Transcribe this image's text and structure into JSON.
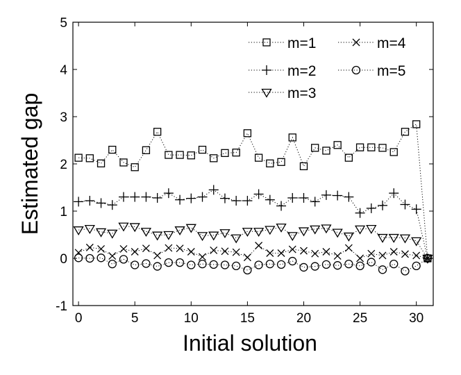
{
  "chart_data": {
    "type": "line",
    "xlabel": "Initial solution",
    "ylabel": "Estimated gap",
    "xlim": [
      -0.5,
      31.5
    ],
    "ylim": [
      -1,
      5
    ],
    "xticks": [
      0,
      5,
      10,
      15,
      20,
      25,
      30
    ],
    "yticks": [
      -1,
      0,
      1,
      2,
      3,
      4,
      5
    ],
    "line_style": "dotted",
    "legend_position": "top-right",
    "x": [
      0,
      1,
      2,
      3,
      4,
      5,
      6,
      7,
      8,
      9,
      10,
      11,
      12,
      13,
      14,
      15,
      16,
      17,
      18,
      19,
      20,
      21,
      22,
      23,
      24,
      25,
      26,
      27,
      28,
      29,
      30,
      31
    ],
    "series": [
      {
        "name": "m=1",
        "marker": "square",
        "values": [
          2.13,
          2.12,
          2.01,
          2.3,
          2.03,
          1.93,
          2.29,
          2.68,
          2.19,
          2.19,
          2.18,
          2.3,
          2.12,
          2.23,
          2.24,
          2.65,
          2.13,
          2.01,
          2.04,
          2.56,
          1.95,
          2.34,
          2.28,
          2.4,
          2.13,
          2.35,
          2.35,
          2.34,
          2.25,
          2.68,
          2.84,
          0.0
        ]
      },
      {
        "name": "m=2",
        "marker": "plus",
        "values": [
          1.2,
          1.22,
          1.17,
          1.13,
          1.3,
          1.3,
          1.3,
          1.28,
          1.38,
          1.24,
          1.27,
          1.3,
          1.45,
          1.27,
          1.22,
          1.22,
          1.36,
          1.24,
          1.11,
          1.28,
          1.28,
          1.2,
          1.34,
          1.33,
          1.3,
          0.96,
          1.06,
          1.12,
          1.38,
          1.14,
          1.04,
          0.0
        ]
      },
      {
        "name": "m=3",
        "marker": "triangle-down",
        "values": [
          0.6,
          0.63,
          0.56,
          0.53,
          0.68,
          0.67,
          0.57,
          0.49,
          0.5,
          0.6,
          0.65,
          0.48,
          0.49,
          0.54,
          0.43,
          0.57,
          0.57,
          0.61,
          0.66,
          0.48,
          0.58,
          0.62,
          0.64,
          0.55,
          0.47,
          0.62,
          0.63,
          0.44,
          0.44,
          0.43,
          0.37,
          0.0
        ]
      },
      {
        "name": "m=4",
        "marker": "x",
        "values": [
          0.12,
          0.23,
          0.2,
          0.05,
          0.2,
          0.14,
          0.21,
          0.06,
          0.22,
          0.21,
          0.14,
          0.03,
          0.17,
          0.15,
          0.13,
          0.02,
          0.27,
          0.11,
          0.11,
          0.19,
          0.16,
          0.1,
          0.14,
          0.05,
          0.22,
          0.0,
          0.1,
          0.06,
          0.14,
          0.09,
          0.06,
          0.0
        ]
      },
      {
        "name": "m=5",
        "marker": "circle",
        "values": [
          0.01,
          0.0,
          0.01,
          -0.12,
          -0.02,
          -0.14,
          -0.11,
          -0.17,
          -0.09,
          -0.09,
          -0.14,
          -0.12,
          -0.13,
          -0.14,
          -0.16,
          -0.25,
          -0.14,
          -0.12,
          -0.13,
          -0.06,
          -0.19,
          -0.17,
          -0.13,
          -0.15,
          -0.12,
          -0.16,
          -0.08,
          -0.24,
          -0.12,
          -0.27,
          -0.16,
          0.0
        ]
      }
    ]
  }
}
